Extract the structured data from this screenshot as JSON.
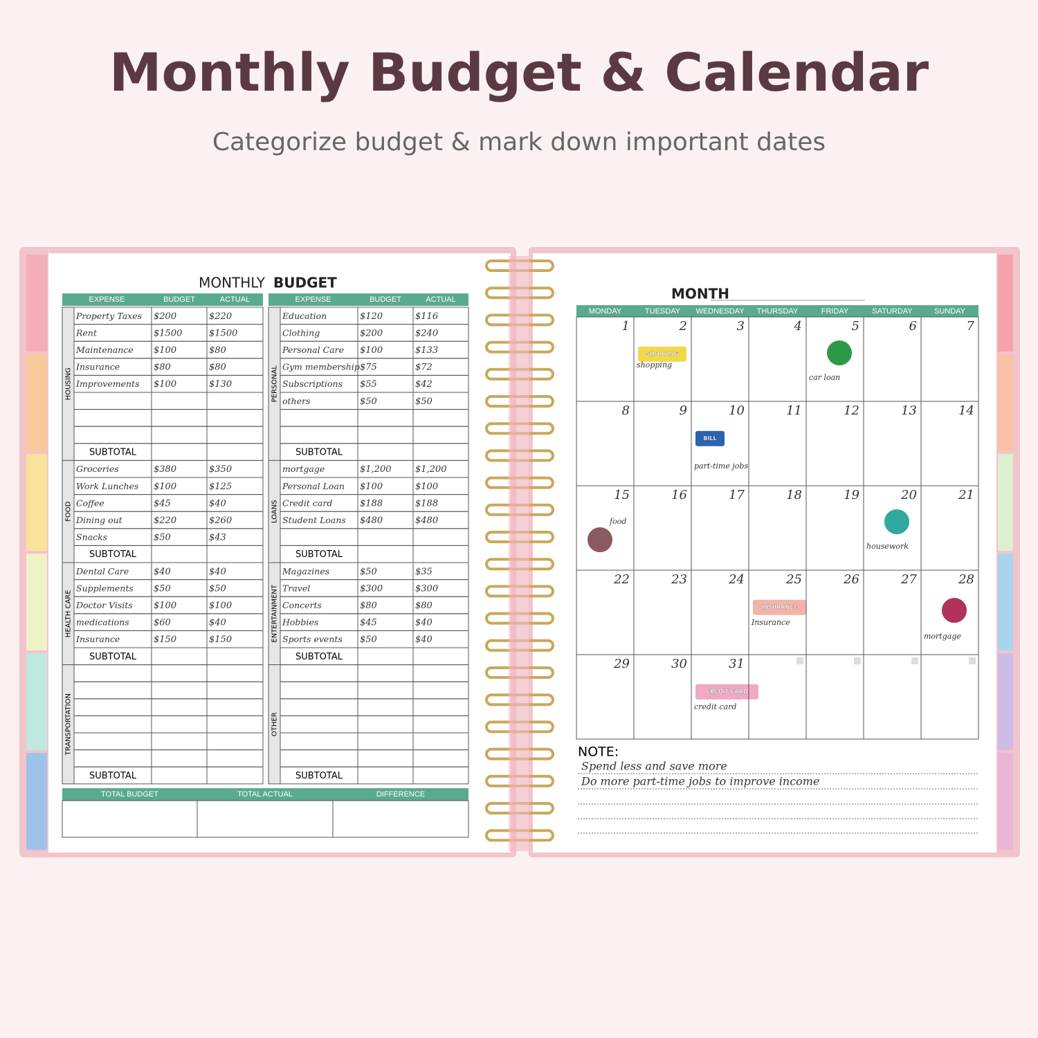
{
  "header": {
    "title": "Monthly Budget & Calendar",
    "subtitle": "Categorize budget & mark down important dates"
  },
  "budget": {
    "title_light": "MONTHLY",
    "title_bold": "BUDGET",
    "tables": [
      {
        "columns": [
          "EXPENSE",
          "BUDGET",
          "ACTUAL"
        ],
        "sections": [
          {
            "name": "HOUSING",
            "rows": [
              [
                "Property Taxes",
                "$200",
                "$220"
              ],
              [
                "Rent",
                "$1500",
                "$1500"
              ],
              [
                "Maintenance",
                "$100",
                "$80"
              ],
              [
                "Insurance",
                "$80",
                "$80"
              ],
              [
                "Improvements",
                "$100",
                "$130"
              ]
            ],
            "subtotal": "SUBTOTAL"
          },
          {
            "name": "FOOD",
            "rows": [
              [
                "Groceries",
                "$380",
                "$350"
              ],
              [
                "Work Lunches",
                "$100",
                "$125"
              ],
              [
                "Coffee",
                "$45",
                "$40"
              ],
              [
                "Dining out",
                "$220",
                "$260"
              ],
              [
                "Snacks",
                "$50",
                "$43"
              ]
            ],
            "subtotal": "SUBTOTAL"
          },
          {
            "name": "HEALTH CARE",
            "rows": [
              [
                "Dental Care",
                "$40",
                "$40"
              ],
              [
                "Supplements",
                "$50",
                "$50"
              ],
              [
                "Doctor Visits",
                "$100",
                "$100"
              ],
              [
                "medications",
                "$60",
                "$40"
              ],
              [
                "Insurance",
                "$150",
                "$150"
              ]
            ],
            "subtotal": "SUBTOTAL"
          },
          {
            "name": "TRANSPORTATION",
            "rows": [],
            "subtotal": "SUBTOTAL"
          }
        ]
      },
      {
        "columns": [
          "EXPENSE",
          "BUDGET",
          "ACTUAL"
        ],
        "sections": [
          {
            "name": "PERSONAL",
            "rows": [
              [
                "Education",
                "$120",
                "$116"
              ],
              [
                "Clothing",
                "$200",
                "$240"
              ],
              [
                "Personal Care",
                "$100",
                "$133"
              ],
              [
                "Gym membership",
                "$75",
                "$72"
              ],
              [
                "Subscriptions",
                "$55",
                "$42"
              ],
              [
                "others",
                "$50",
                "$50"
              ]
            ],
            "subtotal": "SUBTOTAL"
          },
          {
            "name": "LOANS",
            "rows": [
              [
                "mortgage",
                "$1,200",
                "$1,200"
              ],
              [
                "Personal Loan",
                "$100",
                "$100"
              ],
              [
                "Credit card",
                "$188",
                "$188"
              ],
              [
                "Student Loans",
                "$480",
                "$480"
              ]
            ],
            "subtotal": "SUBTOTAL"
          },
          {
            "name": "ENTERTAINMENT",
            "rows": [
              [
                "Magazines",
                "$50",
                "$35"
              ],
              [
                "Travel",
                "$300",
                "$300"
              ],
              [
                "Concerts",
                "$80",
                "$80"
              ],
              [
                "Hobbies",
                "$45",
                "$40"
              ],
              [
                "Sports events",
                "$50",
                "$40"
              ]
            ],
            "subtotal": "SUBTOTAL"
          },
          {
            "name": "OTHER",
            "rows": [],
            "subtotal": "SUBTOTAL"
          }
        ]
      }
    ],
    "totals": [
      "TOTAL BUDGET",
      "TOTAL ACTUAL",
      "DIFFERENCE"
    ]
  },
  "calendar": {
    "month_label": "MONTH",
    "weekdays": [
      "MONDAY",
      "TUESDAY",
      "WEDNESDAY",
      "THURSDAY",
      "FRIDAY",
      "SATURDAY",
      "SUNDAY"
    ],
    "days": [
      {
        "date": 1
      },
      {
        "date": 2,
        "note": "shopping",
        "sticker": "SHOPPING",
        "color": "#f2d94a"
      },
      {
        "date": 3
      },
      {
        "date": 4
      },
      {
        "date": 5,
        "note": "car loan",
        "icon": "#2e9a47"
      },
      {
        "date": 6
      },
      {
        "date": 7
      },
      {
        "date": 8
      },
      {
        "date": 9
      },
      {
        "date": 10,
        "note": "part-time jobs",
        "sticker": "BILL",
        "color": "#2a63b0"
      },
      {
        "date": 11
      },
      {
        "date": 12
      },
      {
        "date": 13
      },
      {
        "date": 14
      },
      {
        "date": 15,
        "note": "food",
        "icon": "#8a5a5e"
      },
      {
        "date": 16
      },
      {
        "date": 17
      },
      {
        "date": 18
      },
      {
        "date": 19
      },
      {
        "date": 20,
        "note": "housework",
        "icon": "#2fa8a0"
      },
      {
        "date": 21
      },
      {
        "date": 22
      },
      {
        "date": 23
      },
      {
        "date": 24
      },
      {
        "date": 25,
        "note": "Insurance",
        "sticker": "INSURANCE",
        "color": "#f3b3a8"
      },
      {
        "date": 26
      },
      {
        "date": 27
      },
      {
        "date": 28,
        "note": "mortgage",
        "icon": "#b0335a"
      },
      {
        "date": 29
      },
      {
        "date": 30
      },
      {
        "date": 31,
        "note": "credit card",
        "sticker": "CREDIT CARD",
        "color": "#f0a8c4"
      }
    ]
  },
  "notes": {
    "label": "NOTE:",
    "lines": [
      "Spend less and save more",
      "Do more part-time jobs to improve income"
    ]
  }
}
